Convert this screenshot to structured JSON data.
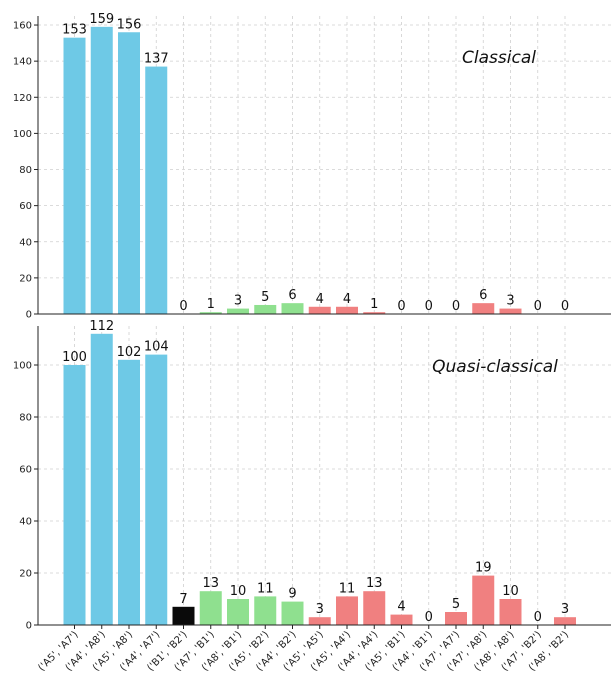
{
  "colors": {
    "blue": "#6ec9e6",
    "green": "#8fe08f",
    "red": "#f08080",
    "black": "#0a0a0a"
  },
  "chart_data": [
    {
      "type": "bar",
      "title": "Classical",
      "ylim": [
        0,
        165
      ],
      "yticks": [
        0,
        20,
        40,
        60,
        80,
        100,
        120,
        140,
        160
      ],
      "grid": true,
      "categories": [
        "('A5', 'A7')",
        "('A4', 'A8')",
        "('A5', 'A8')",
        "('A4', 'A7')",
        "('B1', 'B2')",
        "('A7', 'B1')",
        "('A8', 'B1')",
        "('A5', 'B2')",
        "('A4', 'B2')",
        "('A5', 'A5')",
        "('A5', 'A4')",
        "('A4', 'A4')",
        "('A5', 'B1')",
        "('A4', 'B1')",
        "('A7', 'A7')",
        "('A7', 'A8')",
        "('A8', 'A8')",
        "('A7', 'B2')",
        "('A8', 'B2')"
      ],
      "values": [
        153,
        159,
        156,
        137,
        0,
        1,
        3,
        5,
        6,
        4,
        4,
        1,
        0,
        0,
        0,
        6,
        3,
        0,
        0
      ],
      "bar_colors": [
        "blue",
        "blue",
        "blue",
        "blue",
        "black",
        "green",
        "green",
        "green",
        "green",
        "red",
        "red",
        "red",
        "red",
        "red",
        "red",
        "red",
        "red",
        "red",
        "red"
      ]
    },
    {
      "type": "bar",
      "title": "Quasi-classical",
      "ylim": [
        0,
        115
      ],
      "yticks": [
        0,
        20,
        40,
        60,
        80,
        100
      ],
      "grid": true,
      "categories": [
        "('A5', 'A7')",
        "('A4', 'A8')",
        "('A5', 'A8')",
        "('A4', 'A7')",
        "('B1', 'B2')",
        "('A7', 'B1')",
        "('A8', 'B1')",
        "('A5', 'B2')",
        "('A4', 'B2')",
        "('A5', 'A5')",
        "('A5', 'A4')",
        "('A4', 'A4')",
        "('A5', 'B1')",
        "('A4', 'B1')",
        "('A7', 'A7')",
        "('A7', 'A8')",
        "('A8', 'A8')",
        "('A7', 'B2')",
        "('A8', 'B2')"
      ],
      "values": [
        100,
        112,
        102,
        104,
        7,
        13,
        10,
        11,
        9,
        3,
        11,
        13,
        4,
        0,
        5,
        19,
        10,
        0,
        3
      ],
      "bar_colors": [
        "blue",
        "blue",
        "blue",
        "blue",
        "black",
        "green",
        "green",
        "green",
        "green",
        "red",
        "red",
        "red",
        "red",
        "red",
        "red",
        "red",
        "red",
        "red",
        "red"
      ]
    }
  ]
}
